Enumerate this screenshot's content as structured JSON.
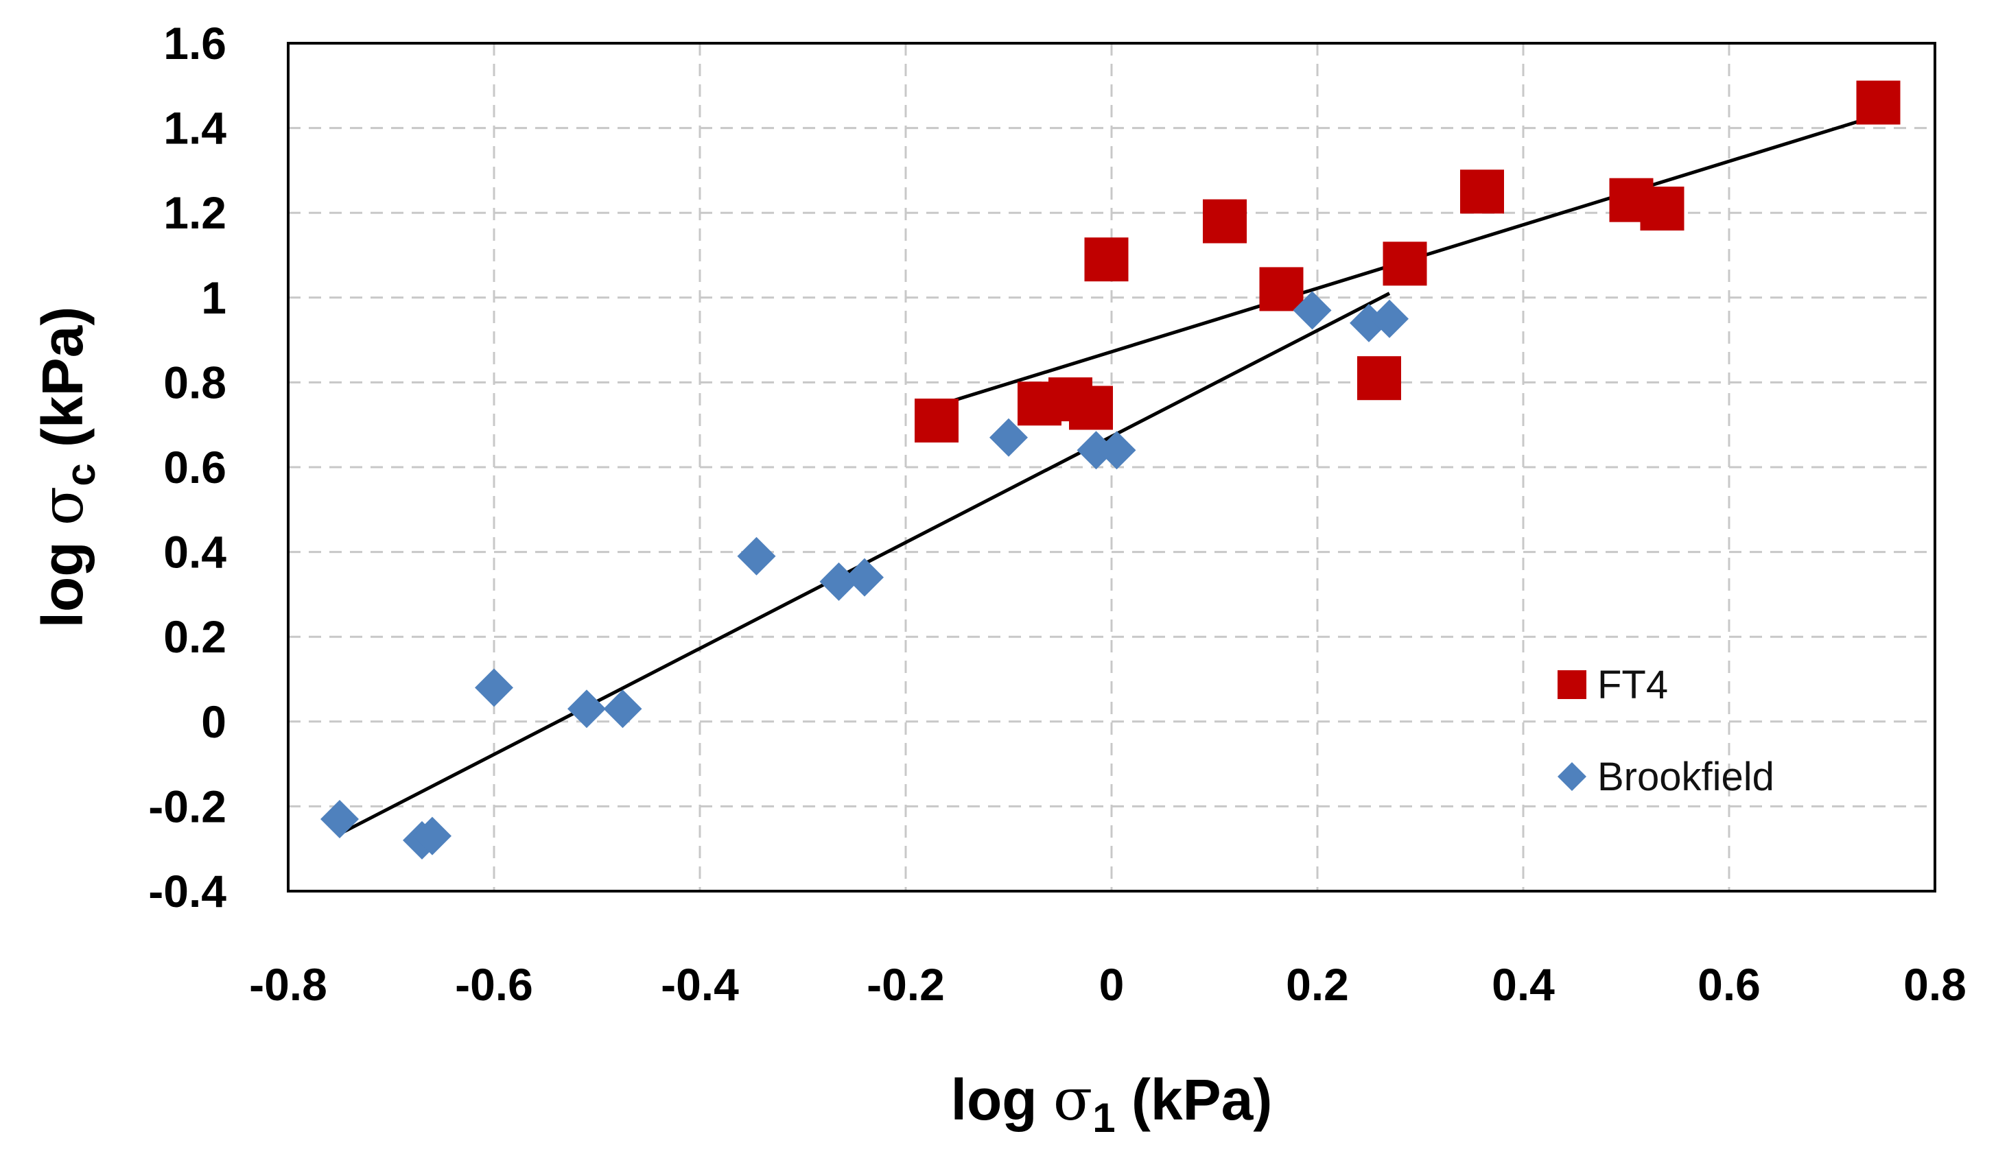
{
  "chart_data": {
    "type": "scatter",
    "xlabel": {
      "prefix": "log ",
      "greek": "σ",
      "subscript": "1",
      "suffix": " (kPa)"
    },
    "ylabel": {
      "prefix": "log ",
      "greek": "σ",
      "subscript": "c",
      "suffix": " (kPa)"
    },
    "xlim": [
      -0.8,
      0.8
    ],
    "ylim": [
      -0.4,
      1.6
    ],
    "x_ticks": [
      -0.8,
      -0.6,
      -0.4,
      -0.2,
      0,
      0.2,
      0.4,
      0.6,
      0.8
    ],
    "x_tick_labels": [
      "-0.8",
      "-0.6",
      "-0.4",
      "-0.2",
      "0",
      "0.2",
      "0.4",
      "0.6",
      "0.8"
    ],
    "y_ticks": [
      -0.4,
      -0.2,
      0,
      0.2,
      0.4,
      0.6,
      0.8,
      1.0,
      1.2,
      1.4,
      1.6
    ],
    "y_tick_labels": [
      "-0.4",
      "-0.2",
      "0",
      "0.2",
      "0.4",
      "0.6",
      "0.8",
      "1",
      "1.2",
      "1.4",
      "1.6"
    ],
    "grid": true,
    "legend_position": "bottom-right",
    "series": [
      {
        "name": "FT4",
        "marker": "square",
        "color": "#c00000",
        "points": [
          [
            -0.17,
            0.71
          ],
          [
            -0.07,
            0.75
          ],
          [
            -0.04,
            0.76
          ],
          [
            -0.02,
            0.74
          ],
          [
            -0.005,
            1.09
          ],
          [
            0.11,
            1.18
          ],
          [
            0.165,
            1.02
          ],
          [
            0.26,
            0.81
          ],
          [
            0.285,
            1.08
          ],
          [
            0.36,
            1.25
          ],
          [
            0.505,
            1.23
          ],
          [
            0.535,
            1.21
          ],
          [
            0.745,
            1.46
          ]
        ],
        "trendline": [
          [
            -0.17,
            0.745
          ],
          [
            0.745,
            1.43
          ]
        ]
      },
      {
        "name": "Brookfield",
        "marker": "diamond",
        "color": "#4f81bd",
        "points": [
          [
            -0.75,
            -0.23
          ],
          [
            -0.67,
            -0.28
          ],
          [
            -0.66,
            -0.27
          ],
          [
            -0.6,
            0.08
          ],
          [
            -0.51,
            0.03
          ],
          [
            -0.475,
            0.03
          ],
          [
            -0.345,
            0.39
          ],
          [
            -0.265,
            0.33
          ],
          [
            -0.24,
            0.34
          ],
          [
            -0.1,
            0.67
          ],
          [
            -0.015,
            0.64
          ],
          [
            0.005,
            0.64
          ],
          [
            0.195,
            0.97
          ],
          [
            0.25,
            0.94
          ],
          [
            0.27,
            0.95
          ]
        ],
        "trendline": [
          [
            -0.75,
            -0.265
          ],
          [
            0.27,
            1.01
          ]
        ]
      }
    ]
  },
  "colors": {
    "ft4": "#c00000",
    "brookfield": "#4f81bd",
    "trendline": "#000000",
    "grid": "#c8c8c8"
  }
}
